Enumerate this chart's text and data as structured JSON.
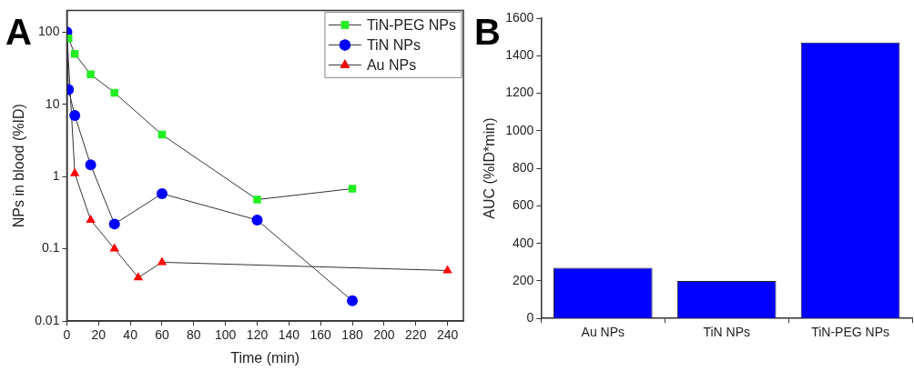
{
  "chart_data": [
    {
      "type": "line",
      "annotations": [
        "A"
      ],
      "xlabel": "Time (min)",
      "ylabel": "NPs in blood (%ID)",
      "log": "y",
      "grid": false,
      "legend": "top right",
      "xlim": [
        0,
        250
      ],
      "xticks": [
        0,
        20,
        40,
        60,
        80,
        100,
        120,
        140,
        160,
        180,
        200,
        220,
        240
      ],
      "ylim": [
        0.01,
        200
      ],
      "yticks": [
        0.01,
        0.1,
        1,
        10,
        100
      ],
      "series": [
        {
          "name": "TiN-PEG NPs",
          "color": "#22ee22",
          "marker": "square",
          "x": [
            1,
            5,
            15,
            30,
            60,
            120,
            180
          ],
          "values": [
            82,
            50,
            26,
            14.5,
            3.8,
            0.48,
            0.68
          ]
        },
        {
          "name": "TiN NPs",
          "color": "#0000ff",
          "marker": "circle",
          "x": [
            0,
            1,
            5,
            15,
            30,
            60,
            120,
            180
          ],
          "values": [
            100,
            16,
            7,
            1.45,
            0.22,
            0.58,
            0.25,
            0.019
          ]
        },
        {
          "name": "Au NPs",
          "color": "#ff0000",
          "marker": "triangle",
          "x": [
            0,
            5,
            15,
            30,
            45,
            60,
            240
          ],
          "values": [
            100,
            1.1,
            0.25,
            0.1,
            0.04,
            0.065,
            0.05
          ]
        }
      ]
    },
    {
      "type": "bar",
      "annotations": [
        "B"
      ],
      "ylabel": "AUC (%ID*min)",
      "grid": false,
      "categories": [
        "Au NPs",
        "TiN NPs",
        "TiN-PEG NPs"
      ],
      "values": [
        270,
        200,
        1470
      ],
      "color": "#0000ff",
      "ylim": [
        0,
        1600
      ],
      "yticks": [
        0,
        200,
        400,
        600,
        800,
        1000,
        1200,
        1400,
        1600
      ]
    }
  ]
}
